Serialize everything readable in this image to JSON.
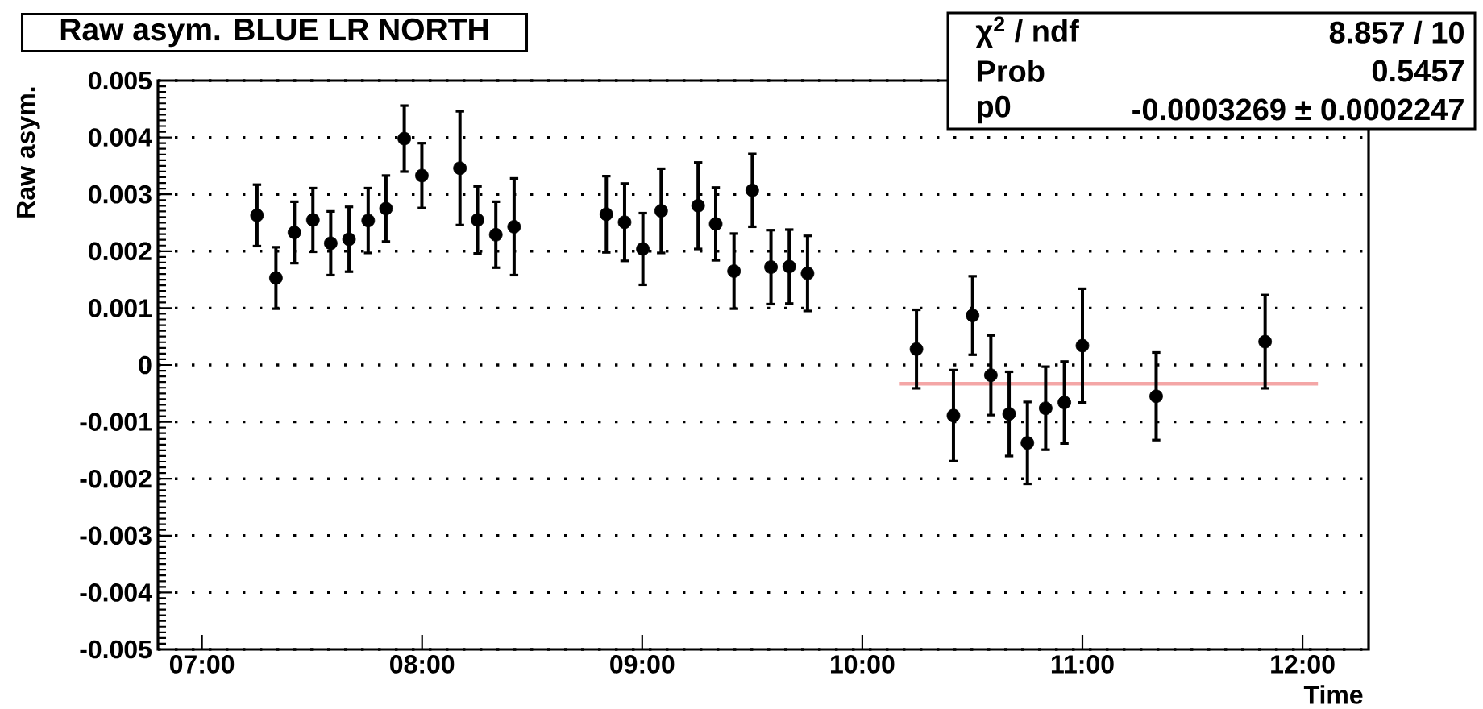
{
  "chart_data": {
    "type": "scatter",
    "title": "Raw asym. BLUE LR NORTH",
    "xlabel": "Time",
    "ylabel": "Raw asym.",
    "annotations": [
      "χ$^{2}$ / ndf",
      "8.857 / 10",
      "Prob",
      "0.5457",
      "p0",
      "-0.0003269 ± 0.0002247"
    ],
    "xlim": [
      6.8,
      12.3
    ],
    "ylim": [
      -0.005,
      0.005
    ],
    "xticks": [
      {
        "value": 7,
        "label": "07:00"
      },
      {
        "value": 8,
        "label": "08:00"
      },
      {
        "value": 9,
        "label": "09:00"
      },
      {
        "value": 10,
        "label": "10:00"
      },
      {
        "value": 11,
        "label": "11:00"
      },
      {
        "value": 12,
        "label": "12:00"
      }
    ],
    "yticks": [
      -0.005,
      -0.004,
      -0.003,
      -0.002,
      -0.001,
      0,
      0.001,
      0.002,
      0.003,
      0.004,
      0.005
    ],
    "grid": "y",
    "series": [
      {
        "type": "line",
        "color": "#f4a6a6",
        "line_style": "solid",
        "x": [
          10.17,
          12.07
        ],
        "values": [
          -0.00033,
          -0.00033
        ]
      },
      {
        "color": "#000000",
        "marker": "circle",
        "x": [
          7.25,
          7.336,
          7.42,
          7.504,
          7.585,
          7.668,
          7.755,
          7.836,
          7.919,
          7.999,
          8.172,
          8.252,
          8.335,
          8.418,
          8.837,
          8.92,
          9.003,
          9.086,
          9.254,
          9.334,
          9.417,
          9.5,
          9.585,
          9.668,
          9.751,
          10.246,
          10.414,
          10.501,
          10.584,
          10.667,
          10.75,
          10.833,
          10.918,
          11.0,
          11.335,
          11.83
        ],
        "values": [
          0.00263,
          0.00153,
          0.00233,
          0.00255,
          0.00214,
          0.00221,
          0.00254,
          0.00275,
          0.00398,
          0.00333,
          0.00346,
          0.00255,
          0.00229,
          0.00243,
          0.00265,
          0.00251,
          0.00204,
          0.00271,
          0.0028,
          0.00248,
          0.00165,
          0.00307,
          0.00172,
          0.00173,
          0.00161,
          0.00028,
          -0.00089,
          0.00087,
          -0.00018,
          -0.00086,
          -0.00137,
          -0.00076,
          -0.00066,
          0.00034,
          -0.00055,
          0.00041
        ],
        "errors": [
          0.00054,
          0.00054,
          0.00054,
          0.00056,
          0.00056,
          0.00057,
          0.00057,
          0.00058,
          0.00058,
          0.00057,
          0.001,
          0.00059,
          0.00058,
          0.00085,
          0.00067,
          0.00068,
          0.00063,
          0.00074,
          0.00076,
          0.00064,
          0.00066,
          0.00064,
          0.00065,
          0.00065,
          0.00066,
          0.00069,
          0.0008,
          0.00069,
          0.0007,
          0.00074,
          0.00072,
          0.00073,
          0.00072,
          0.001,
          0.00077,
          0.00082
        ]
      }
    ]
  }
}
